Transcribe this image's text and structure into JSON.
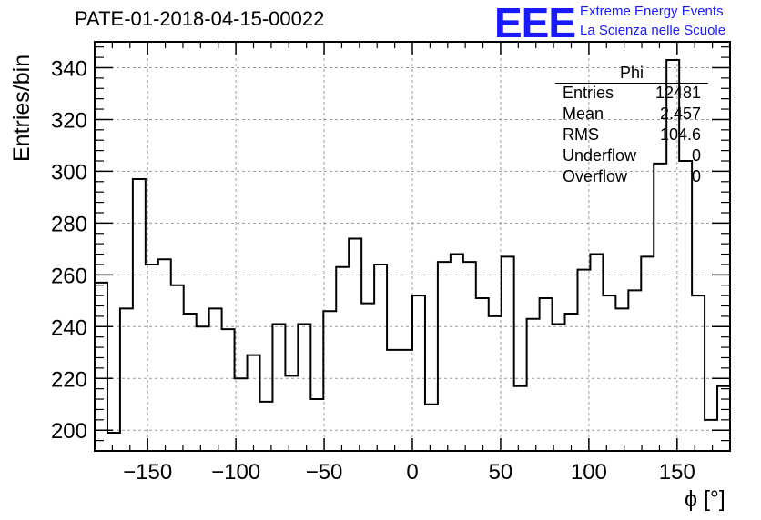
{
  "header": {
    "title": "PATE-01-2018-04-15-00022",
    "logo_text": "EEE",
    "logo_line1": "Extreme Energy Events",
    "logo_line2": "La Scienza nelle Scuole"
  },
  "stats_box": {
    "name": "Phi",
    "rows": [
      {
        "key": "Entries",
        "value": "12481"
      },
      {
        "key": "Mean",
        "value": "2.457"
      },
      {
        "key": "RMS",
        "value": "104.6"
      },
      {
        "key": "Underflow",
        "value": "0"
      },
      {
        "key": "Overflow",
        "value": "0"
      }
    ]
  },
  "chart_data": {
    "type": "histogram",
    "title": "PATE-01-2018-04-15-00022",
    "xlabel": "ϕ [°]",
    "ylabel": "Entries/bin",
    "xlim": [
      -180,
      180
    ],
    "ylim": [
      192,
      350
    ],
    "bin_width": 7.2,
    "x_ticks": [
      -150,
      -100,
      -50,
      0,
      50,
      100,
      150
    ],
    "x_tick_labels": [
      "−150",
      "−100",
      "−50",
      "0",
      "50",
      "100",
      "150"
    ],
    "y_ticks": [
      200,
      220,
      240,
      260,
      280,
      300,
      320,
      340
    ],
    "grid": true,
    "values": [
      257,
      199,
      247,
      297,
      264,
      266,
      256,
      245,
      240,
      247,
      239,
      220,
      229,
      211,
      241,
      221,
      241,
      212,
      246,
      263,
      274,
      249,
      264,
      231,
      231,
      252,
      210,
      265,
      268,
      265,
      251,
      244,
      267,
      217,
      243,
      251,
      241,
      245,
      262,
      268,
      252,
      247,
      254,
      267,
      303,
      343,
      304,
      252,
      204,
      217
    ]
  }
}
